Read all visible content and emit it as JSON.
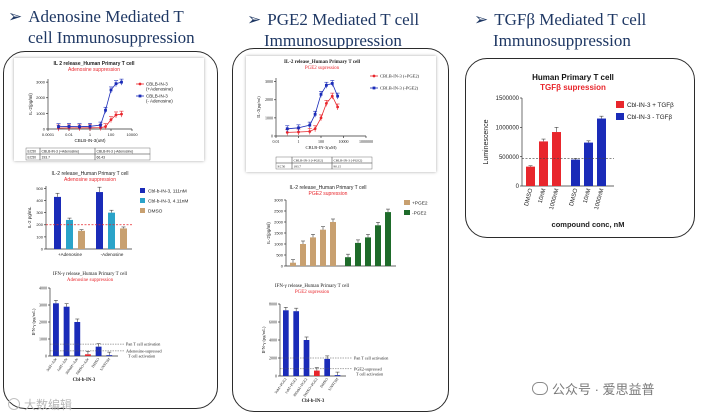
{
  "sections": [
    {
      "title_line1": "Adenosine Mediated T",
      "title_line2": "cell Immunosuppression"
    },
    {
      "title_line1": "PGE2 Mediated T cell",
      "title_line2": "Immunosuppression"
    },
    {
      "title_line1": "TGFβ Mediated T cell",
      "title_line2": "Immunosuppression"
    }
  ],
  "footer": {
    "wechat_label": "公众号 · 爱思益普",
    "watermark": "大数编辑"
  },
  "colors": {
    "red": "#e8262c",
    "blue": "#1a2bb8",
    "cyan": "#2aa3c9",
    "orange": "#c8a070",
    "green": "#1e6b2a",
    "title_red": "#e8262c",
    "grid": "#888888"
  },
  "chart_data": [
    {
      "id": "adeno_curve",
      "type": "line",
      "title": "IL 2 release_Human Primary T cell",
      "subtitle": "Adenosine suppression",
      "xlabel": "CBLB-IN-3(uM)",
      "ylabel": "IL-2(pg/ml)",
      "x_ticks": [
        "0.0001",
        "0.01",
        "1",
        "100",
        "10000"
      ],
      "y_ticks": [
        "0",
        "1000",
        "2000",
        "3000"
      ],
      "ylim": [
        0,
        3200
      ],
      "series": [
        {
          "name": "CBLB-IN-3 (+Adenosine)",
          "color": "red",
          "x": [
            0.001,
            0.01,
            0.1,
            1,
            10,
            30,
            100,
            300,
            1000
          ],
          "y": [
            60,
            70,
            70,
            80,
            90,
            150,
            600,
            900,
            950
          ]
        },
        {
          "name": "CBLB-IN-3 (- Adenosine)",
          "color": "blue",
          "x": [
            0.001,
            0.01,
            0.1,
            1,
            10,
            30,
            100,
            300,
            1000
          ],
          "y": [
            150,
            160,
            150,
            170,
            250,
            1200,
            2500,
            2900,
            3000
          ]
        }
      ],
      "table_header": [
        "EC50",
        "CBLB-IN-3 (+Adenosine)",
        "CBLB-IN-3 (-Adenosine)"
      ],
      "table_row": [
        "EC50",
        "193.7",
        "66.43"
      ]
    },
    {
      "id": "adeno_bar",
      "type": "bar",
      "title": "IL-2 release_Human Primary T cell",
      "subtitle": "Adenosine suppression",
      "ylabel": "IL-2 pg/mL",
      "y_ticks": [
        "0",
        "100",
        "200",
        "300",
        "400",
        "500"
      ],
      "ylim": [
        0,
        520
      ],
      "groups": [
        "+Adenosine",
        "-Adenosine"
      ],
      "legend": [
        "Cbl-b-IN-3, 111nM",
        "Cbl-b-IN-3, 4.11nM",
        "DMSO"
      ],
      "bars": [
        {
          "group": 0,
          "series": 0,
          "value": 430,
          "error": 30
        },
        {
          "group": 0,
          "series": 1,
          "value": 240,
          "error": 15
        },
        {
          "group": 0,
          "series": 2,
          "value": 150,
          "error": 10
        },
        {
          "group": 1,
          "series": 0,
          "value": 470,
          "error": 40
        },
        {
          "group": 1,
          "series": 1,
          "value": 300,
          "error": 20
        },
        {
          "group": 1,
          "series": 2,
          "value": 170,
          "error": 12
        }
      ],
      "reference_value": 200
    },
    {
      "id": "adeno_ifn",
      "type": "bar",
      "title": "IFN-γ release_Human Primary T cell",
      "subtitle": "Adenosine suppression",
      "ylabel": "IFN-γ (pg/mL)",
      "xlabel": "Cbl-b-IN-3",
      "y_ticks": [
        "0",
        "1000",
        "2000",
        "3000",
        "4000"
      ],
      "ylim": [
        0,
        4000
      ],
      "categories": [
        "3uM+Ade",
        "1uM+Ade",
        "300nM+Ade",
        "DMSO+Ade",
        "DMSO",
        "UNSTIM"
      ],
      "values": [
        3100,
        2900,
        2000,
        100,
        550,
        50
      ],
      "colors": [
        "blue",
        "blue",
        "blue",
        "red",
        "blue",
        "blue"
      ],
      "annotations": [
        "Pan T cell activation",
        "Adenosine-supressed",
        "T cell activation"
      ],
      "ref_pan": 700,
      "ref_supp": 300
    },
    {
      "id": "pge2_curve",
      "type": "line",
      "title": "IL-2 release_Human Primary T cell",
      "subtitle": "PGE2 supression",
      "xlabel": "CBLB-IN-3(uM)",
      "ylabel": "IL-2(pg/ml)",
      "x_ticks": [
        "0.01",
        "1",
        "100",
        "10000",
        "1000000"
      ],
      "y_ticks": [
        "0",
        "1000",
        "2000",
        "3000"
      ],
      "ylim": [
        0,
        3200
      ],
      "series": [
        {
          "name": "CBLB-IN-3 (+PGE2)",
          "color": "red",
          "x": [
            0.1,
            1,
            10,
            30,
            100,
            300,
            1000,
            3000
          ],
          "y": [
            200,
            220,
            250,
            400,
            1000,
            1800,
            2200,
            1600
          ]
        },
        {
          "name": "CBLB-IN-3 (-PGE2)",
          "color": "blue",
          "x": [
            0.1,
            1,
            10,
            30,
            100,
            300,
            1000,
            3000
          ],
          "y": [
            400,
            450,
            600,
            1200,
            2300,
            2800,
            2900,
            2200
          ]
        }
      ],
      "table_header": [
        "",
        "CBLB-IN-3 (+PGE2)",
        "CBLB-IN-3 (-PGE2)"
      ],
      "table_row": [
        "EC50",
        "183.7",
        "90.15"
      ]
    },
    {
      "id": "pge2_bar",
      "type": "bar",
      "title": "IL-2 release_Human Primary T cell",
      "subtitle": "PGE2 supression",
      "ylabel": "IL-2(pg/ml)",
      "y_ticks": [
        "0",
        "500",
        "1000",
        "1500",
        "2000",
        "2500",
        "3000"
      ],
      "ylim": [
        0,
        3000
      ],
      "legend": [
        "+PGE2",
        "-PGE2"
      ],
      "series": [
        {
          "name": "+PGE2",
          "color": "orange",
          "values": [
            150,
            1000,
            1300,
            1650,
            2000
          ]
        },
        {
          "name": "-PGE2",
          "color": "green",
          "values": [
            400,
            1050,
            1300,
            1850,
            2450
          ]
        }
      ]
    },
    {
      "id": "pge2_ifn",
      "type": "bar",
      "title": "IFN-γ release_Human Primary T cell",
      "subtitle": "PGE2 supression",
      "ylabel": "IFN-γ (pg/mL)",
      "xlabel": "Cbl-b-IN-3",
      "y_ticks": [
        "0",
        "2000",
        "4000",
        "6000",
        "8000"
      ],
      "ylim": [
        0,
        8000
      ],
      "categories": [
        "3uM+PGE2",
        "1uM+PGE2",
        "300nM+PGE2",
        "DMSO+PGE2",
        "DMSO",
        "UNSTIM"
      ],
      "values": [
        7300,
        7200,
        4000,
        600,
        1900,
        100
      ],
      "colors": [
        "blue",
        "blue",
        "blue",
        "red",
        "blue",
        "blue"
      ],
      "annotations": [
        "Pan T cell activation",
        "PGE2-supressed",
        "T cell activation"
      ],
      "ref_pan": 2000,
      "ref_supp": 800
    },
    {
      "id": "tgfb_bar",
      "type": "bar",
      "title": "Human Primary T cell",
      "subtitle": "TGFβ supression",
      "ylabel": "Luminescence",
      "xlabel": "compound conc, nM",
      "y_ticks": [
        "0",
        "500000",
        "1000000",
        "1500000"
      ],
      "ylim": [
        0,
        1500000
      ],
      "legend": [
        "Cbl-IN-3 + TGFβ",
        "Cbl-IN-3 - TGFβ"
      ],
      "categories": [
        "DMSO",
        "10nM",
        "1000nM",
        "DMSO",
        "10nM",
        "1000nM"
      ],
      "values": [
        330000,
        760000,
        920000,
        450000,
        740000,
        1150000
      ],
      "errors": [
        15000,
        40000,
        80000,
        15000,
        30000,
        40000
      ],
      "colors": [
        "red",
        "red",
        "red",
        "blue",
        "blue",
        "blue"
      ],
      "reference_value": 470000
    }
  ]
}
